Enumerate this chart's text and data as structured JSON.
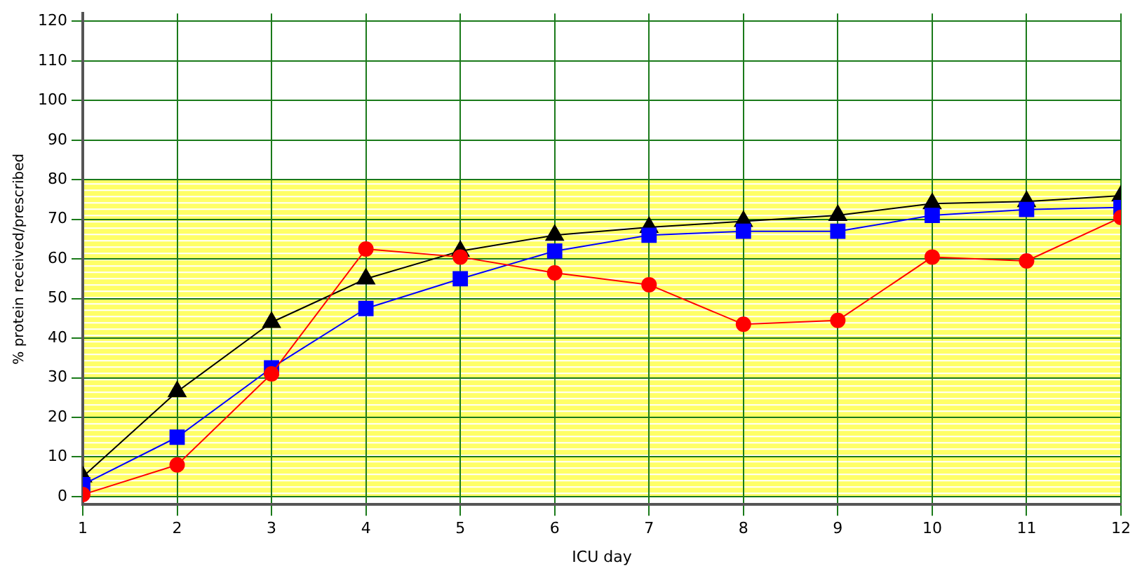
{
  "chart_data": {
    "type": "line",
    "xlabel": "ICU day",
    "ylabel": "% protein received/prescribed",
    "x": [
      1,
      2,
      3,
      4,
      5,
      6,
      7,
      8,
      9,
      10,
      11,
      12
    ],
    "series": [
      {
        "color": "#000000",
        "marker": "triangle",
        "values": [
          5,
          26.5,
          44,
          55,
          62,
          66,
          68,
          69.5,
          71,
          74,
          74.5,
          76
        ]
      },
      {
        "color": "#0000ff",
        "marker": "square",
        "values": [
          3,
          15,
          32.5,
          47.5,
          55,
          62,
          66,
          67,
          67,
          71,
          72.5,
          73
        ]
      },
      {
        "color": "#ff0000",
        "marker": "circle",
        "values": [
          0.5,
          8,
          31,
          62.5,
          60.5,
          56.5,
          53.5,
          43.5,
          44.5,
          60.5,
          59.5,
          70.5
        ]
      }
    ],
    "xlim": [
      1,
      12
    ],
    "xticks": [
      1,
      2,
      3,
      4,
      5,
      6,
      7,
      8,
      9,
      10,
      11,
      12
    ],
    "ylim": [
      -2,
      122
    ],
    "yticks": [
      0,
      10,
      20,
      30,
      40,
      50,
      60,
      70,
      80,
      90,
      100,
      110,
      120
    ],
    "bands": [
      {
        "axis": "y",
        "from": 0,
        "to": 80,
        "color": "#ffff66"
      }
    ],
    "grid": true,
    "legend": false,
    "line_style": "solid"
  }
}
